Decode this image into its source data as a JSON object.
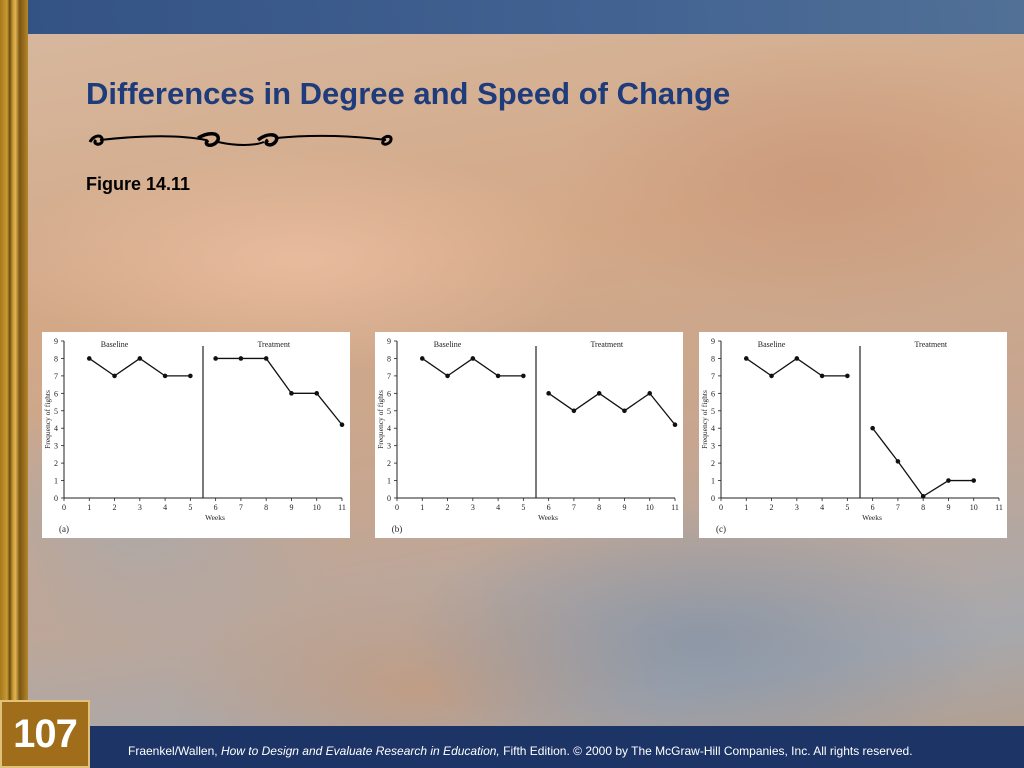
{
  "slide": {
    "title": "Differences in Degree and Speed of Change",
    "figure_label": "Figure 14.11",
    "page_number": "107",
    "footer": {
      "authors": "Fraenkel/Wallen, ",
      "book": "How to Design and Evaluate Research in Education,",
      "rest": " Fifth Edition. © 2000 by The McGraw-Hill Companies, Inc. All rights reserved."
    }
  },
  "colors": {
    "title": "#1e3c7c",
    "bottom_band": "#1d3566",
    "page_box": "#a06e1a"
  },
  "chart_data": [
    {
      "type": "line",
      "panel_label": "(a)",
      "xlabel": "Weeks",
      "ylabel": "Frequency of fights",
      "xlim": [
        0,
        11
      ],
      "ylim": [
        0,
        9
      ],
      "x_ticks": [
        0,
        1,
        2,
        3,
        4,
        5,
        6,
        7,
        8,
        9,
        10,
        11
      ],
      "y_ticks": [
        0,
        1,
        2,
        3,
        4,
        5,
        6,
        7,
        8,
        9
      ],
      "phase_labels": [
        "Baseline",
        "Treatment"
      ],
      "phase_change_x": 5.5,
      "series": [
        {
          "x": [
            1,
            2,
            3,
            4,
            5
          ],
          "y": [
            8,
            7,
            8,
            7,
            7
          ]
        },
        {
          "x": [
            6,
            7,
            8,
            9,
            10,
            11
          ],
          "y": [
            8,
            8,
            8,
            6,
            6,
            4.2
          ]
        }
      ]
    },
    {
      "type": "line",
      "panel_label": "(b)",
      "xlabel": "Weeks",
      "ylabel": "Frequency of fights",
      "xlim": [
        0,
        11
      ],
      "ylim": [
        0,
        9
      ],
      "x_ticks": [
        0,
        1,
        2,
        3,
        4,
        5,
        6,
        7,
        8,
        9,
        10,
        11
      ],
      "y_ticks": [
        0,
        1,
        2,
        3,
        4,
        5,
        6,
        7,
        8,
        9
      ],
      "phase_labels": [
        "Baseline",
        "Treatment"
      ],
      "phase_change_x": 5.5,
      "series": [
        {
          "x": [
            1,
            2,
            3,
            4,
            5
          ],
          "y": [
            8,
            7,
            8,
            7,
            7
          ]
        },
        {
          "x": [
            6,
            7,
            8,
            9,
            10,
            11
          ],
          "y": [
            6,
            5,
            6,
            5,
            6,
            4.2
          ]
        }
      ]
    },
    {
      "type": "line",
      "panel_label": "(c)",
      "xlabel": "Weeks",
      "ylabel": "Frequency of fights",
      "xlim": [
        0,
        11
      ],
      "ylim": [
        0,
        9
      ],
      "x_ticks": [
        0,
        1,
        2,
        3,
        4,
        5,
        6,
        7,
        8,
        9,
        10,
        11
      ],
      "y_ticks": [
        0,
        1,
        2,
        3,
        4,
        5,
        6,
        7,
        8,
        9
      ],
      "phase_labels": [
        "Baseline",
        "Treatment"
      ],
      "phase_change_x": 5.5,
      "series": [
        {
          "x": [
            1,
            2,
            3,
            4,
            5
          ],
          "y": [
            8,
            7,
            8,
            7,
            7
          ]
        },
        {
          "x": [
            6,
            7,
            8,
            9,
            10
          ],
          "y": [
            4,
            2.1,
            0.1,
            1,
            1
          ]
        }
      ]
    }
  ]
}
